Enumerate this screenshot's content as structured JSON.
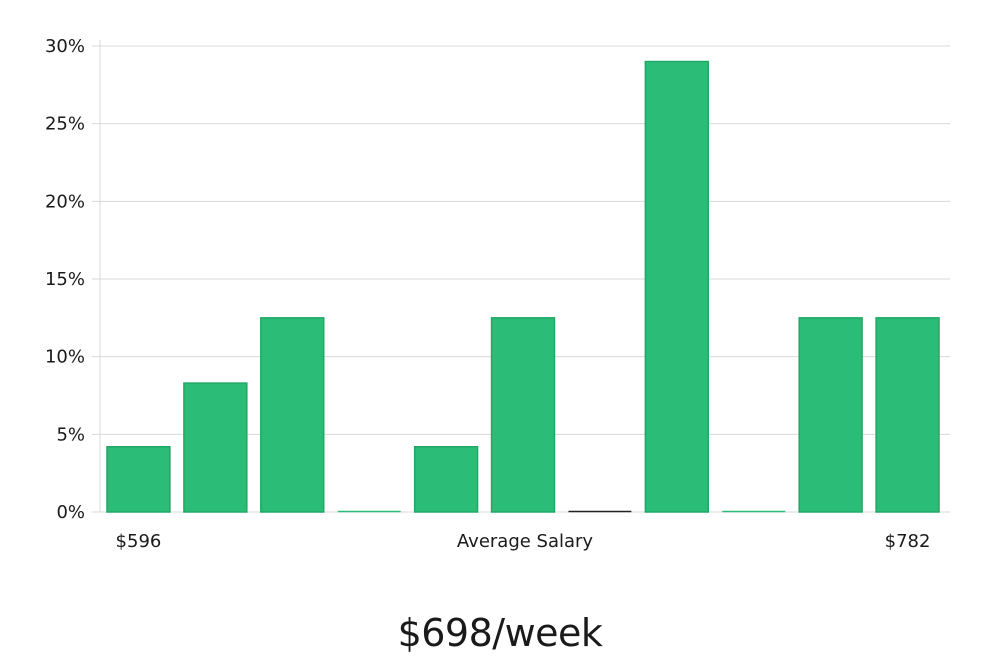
{
  "headline": "$698/week",
  "chart_data": {
    "type": "bar",
    "xlabel": "Average Salary",
    "x_start_label": "$596",
    "x_end_label": "$782",
    "values": [
      4.2,
      8.3,
      12.5,
      0,
      4.2,
      12.5,
      0,
      29,
      0,
      12.5,
      12.5
    ],
    "ylim": [
      0,
      30
    ],
    "yticks": [
      "0%",
      "5%",
      "10%",
      "15%",
      "20%",
      "25%",
      "30%"
    ],
    "grid": true,
    "colors": {
      "bar": "#2bbd77",
      "bar_edge": "#22a866",
      "grid": "#d9d9d9",
      "highlight_marker": "#222222"
    },
    "highlight_index": 6
  }
}
